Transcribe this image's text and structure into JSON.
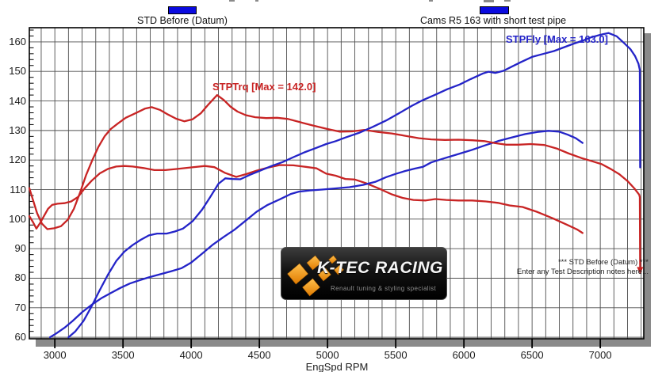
{
  "page": {
    "background": "#ffffff",
    "grid_color": "#4f4f4f",
    "border_color": "#000000",
    "shadow_color": "#8a8a8a"
  },
  "legend": {
    "items": [
      {
        "label": "STD Before (Datum)",
        "swatch_color": "#0a0adf"
      },
      {
        "label": "Cams R5 163 with short test pipe",
        "swatch_color": "#0a0adf"
      }
    ]
  },
  "annotations": {
    "trq_max_label": "STPTrq [Max = 142.0]",
    "fly_max_label": "STPFly [Max = 163.0]",
    "trq_color": "#c82424",
    "fly_color": "#2424c8",
    "note_line1": "*** STD Before (Datum) ***",
    "note_line2": "Enter any Test Description notes here...",
    "red_drop_arrow": {
      "rpm": 7292,
      "value": 83.5
    }
  },
  "logo": {
    "title": "K-TEC RACING",
    "tagline": "Renault tuning & styling specialist",
    "accent_color": "#f59a1d"
  },
  "chart_data": {
    "type": "line",
    "title": "",
    "xlabel": "EngSpd RPM",
    "ylabel": "",
    "x_range": [
      2813,
      7319
    ],
    "y_range": [
      59.5,
      164.8
    ],
    "x_ticks": [
      3000,
      3500,
      4000,
      4500,
      5000,
      5500,
      6000,
      6500,
      7000
    ],
    "y_ticks": [
      60,
      70,
      80,
      90,
      100,
      110,
      120,
      130,
      140,
      150,
      160
    ],
    "x_grid_step": 100,
    "y_grid_step": 10,
    "y_minor_tick_step": 2,
    "grid": true,
    "legend_position": "top",
    "series": [
      {
        "name": "STD Before (Datum) - STPTrq",
        "color": "#c82424",
        "points": [
          [
            2813,
            101
          ],
          [
            2840,
            99
          ],
          [
            2865,
            96.8
          ],
          [
            2890,
            98.5
          ],
          [
            2920,
            101
          ],
          [
            2950,
            103.5
          ],
          [
            2980,
            104.8
          ],
          [
            3020,
            105.2
          ],
          [
            3070,
            105.4
          ],
          [
            3120,
            106
          ],
          [
            3170,
            107.5
          ],
          [
            3220,
            110.5
          ],
          [
            3270,
            113
          ],
          [
            3330,
            115.5
          ],
          [
            3390,
            117
          ],
          [
            3450,
            117.8
          ],
          [
            3510,
            118
          ],
          [
            3570,
            117.8
          ],
          [
            3650,
            117.3
          ],
          [
            3730,
            116.6
          ],
          [
            3810,
            116.6
          ],
          [
            3900,
            117
          ],
          [
            4000,
            117.5
          ],
          [
            4100,
            118
          ],
          [
            4170,
            117.6
          ],
          [
            4250,
            115.6
          ],
          [
            4330,
            114.3
          ],
          [
            4400,
            115.2
          ],
          [
            4480,
            116.4
          ],
          [
            4560,
            117.4
          ],
          [
            4650,
            118.3
          ],
          [
            4750,
            118.2
          ],
          [
            4840,
            117.7
          ],
          [
            4920,
            117.2
          ],
          [
            4990,
            115.4
          ],
          [
            5060,
            114.7
          ],
          [
            5130,
            113.6
          ],
          [
            5200,
            113.4
          ],
          [
            5280,
            112.2
          ],
          [
            5380,
            110.3
          ],
          [
            5470,
            108.4
          ],
          [
            5550,
            107.2
          ],
          [
            5630,
            106.5
          ],
          [
            5720,
            106.3
          ],
          [
            5790,
            106.8
          ],
          [
            5870,
            106.5
          ],
          [
            5960,
            106.3
          ],
          [
            6060,
            106.3
          ],
          [
            6160,
            106
          ],
          [
            6250,
            105.5
          ],
          [
            6340,
            104.6
          ],
          [
            6430,
            104.1
          ],
          [
            6540,
            102.4
          ],
          [
            6650,
            100.3
          ],
          [
            6760,
            98
          ],
          [
            6830,
            96.5
          ],
          [
            6870,
            95.3
          ]
        ]
      },
      {
        "name": "STD Before (Datum) - STPFly",
        "color": "#2424c8",
        "points": [
          [
            2965,
            60
          ],
          [
            3010,
            61.3
          ],
          [
            3070,
            63.2
          ],
          [
            3130,
            65.5
          ],
          [
            3200,
            68.5
          ],
          [
            3270,
            71
          ],
          [
            3340,
            73.2
          ],
          [
            3410,
            75
          ],
          [
            3480,
            76.7
          ],
          [
            3550,
            78.2
          ],
          [
            3620,
            79.3
          ],
          [
            3690,
            80.3
          ],
          [
            3770,
            81.3
          ],
          [
            3850,
            82.3
          ],
          [
            3930,
            83.4
          ],
          [
            4000,
            85.3
          ],
          [
            4080,
            88.3
          ],
          [
            4160,
            91.4
          ],
          [
            4240,
            94
          ],
          [
            4320,
            96.5
          ],
          [
            4400,
            99.5
          ],
          [
            4480,
            102.5
          ],
          [
            4560,
            104.8
          ],
          [
            4650,
            106.7
          ],
          [
            4730,
            108.5
          ],
          [
            4790,
            109.3
          ],
          [
            4870,
            109.7
          ],
          [
            4960,
            110
          ],
          [
            5060,
            110.4
          ],
          [
            5160,
            110.8
          ],
          [
            5260,
            111.6
          ],
          [
            5350,
            112.6
          ],
          [
            5430,
            114.2
          ],
          [
            5500,
            115.3
          ],
          [
            5570,
            116.3
          ],
          [
            5640,
            117.1
          ],
          [
            5700,
            117.7
          ],
          [
            5760,
            119.2
          ],
          [
            5850,
            120.5
          ],
          [
            5950,
            121.9
          ],
          [
            6050,
            123.3
          ],
          [
            6150,
            124.9
          ],
          [
            6250,
            126.4
          ],
          [
            6350,
            127.6
          ],
          [
            6450,
            128.8
          ],
          [
            6540,
            129.5
          ],
          [
            6620,
            129.9
          ],
          [
            6700,
            129.6
          ],
          [
            6760,
            128.6
          ],
          [
            6820,
            127.4
          ],
          [
            6870,
            125.8
          ]
        ]
      },
      {
        "name": "Cams R5 163 with short test pipe - STPTrq",
        "color": "#c82424",
        "points": [
          [
            2813,
            110.5
          ],
          [
            2840,
            106.5
          ],
          [
            2870,
            102
          ],
          [
            2905,
            98.5
          ],
          [
            2945,
            96.6
          ],
          [
            2995,
            96.9
          ],
          [
            3045,
            97.6
          ],
          [
            3095,
            99.8
          ],
          [
            3140,
            103.5
          ],
          [
            3185,
            109
          ],
          [
            3230,
            115
          ],
          [
            3275,
            120
          ],
          [
            3320,
            124.5
          ],
          [
            3365,
            128
          ],
          [
            3410,
            130.5
          ],
          [
            3460,
            132.3
          ],
          [
            3520,
            134.3
          ],
          [
            3590,
            135.8
          ],
          [
            3660,
            137.4
          ],
          [
            3710,
            137.9
          ],
          [
            3770,
            137
          ],
          [
            3830,
            135.4
          ],
          [
            3890,
            134
          ],
          [
            3950,
            133.1
          ],
          [
            4010,
            133.8
          ],
          [
            4070,
            135.8
          ],
          [
            4130,
            139
          ],
          [
            4190,
            142
          ],
          [
            4240,
            140.3
          ],
          [
            4290,
            138
          ],
          [
            4340,
            136.4
          ],
          [
            4400,
            135.2
          ],
          [
            4470,
            134.5
          ],
          [
            4550,
            134.2
          ],
          [
            4630,
            134.3
          ],
          [
            4710,
            133.9
          ],
          [
            4800,
            132.8
          ],
          [
            4900,
            131.6
          ],
          [
            5000,
            130.5
          ],
          [
            5090,
            129.6
          ],
          [
            5180,
            129.7
          ],
          [
            5270,
            130.2
          ],
          [
            5370,
            129.5
          ],
          [
            5470,
            129
          ],
          [
            5570,
            128.2
          ],
          [
            5670,
            127.4
          ],
          [
            5760,
            127
          ],
          [
            5860,
            126.8
          ],
          [
            5960,
            126.9
          ],
          [
            6060,
            126.7
          ],
          [
            6150,
            126.4
          ],
          [
            6230,
            125.7
          ],
          [
            6310,
            125.2
          ],
          [
            6400,
            125.2
          ],
          [
            6490,
            125.4
          ],
          [
            6590,
            125.1
          ],
          [
            6680,
            123.9
          ],
          [
            6770,
            122.2
          ],
          [
            6860,
            120.7
          ],
          [
            6940,
            119.6
          ],
          [
            7010,
            118.6
          ],
          [
            7080,
            116.9
          ],
          [
            7140,
            115.2
          ],
          [
            7200,
            112.9
          ],
          [
            7250,
            110.4
          ],
          [
            7285,
            108.3
          ],
          [
            7290,
            107.5
          ],
          [
            7292,
            83.5
          ]
        ]
      },
      {
        "name": "Cams R5 163 with short test pipe - STPFly",
        "color": "#2424c8",
        "points": [
          [
            3100,
            60
          ],
          [
            3150,
            62
          ],
          [
            3210,
            65.5
          ],
          [
            3270,
            70.5
          ],
          [
            3330,
            76
          ],
          [
            3390,
            81.2
          ],
          [
            3450,
            85.8
          ],
          [
            3510,
            89
          ],
          [
            3570,
            91.2
          ],
          [
            3630,
            93
          ],
          [
            3690,
            94.5
          ],
          [
            3750,
            95.1
          ],
          [
            3820,
            95.1
          ],
          [
            3880,
            95.8
          ],
          [
            3940,
            96.8
          ],
          [
            4010,
            99.3
          ],
          [
            4080,
            103.2
          ],
          [
            4140,
            107.5
          ],
          [
            4200,
            112
          ],
          [
            4250,
            113.8
          ],
          [
            4300,
            113.6
          ],
          [
            4360,
            113.5
          ],
          [
            4430,
            115
          ],
          [
            4510,
            116.5
          ],
          [
            4590,
            118
          ],
          [
            4670,
            119.3
          ],
          [
            4750,
            121
          ],
          [
            4830,
            122.6
          ],
          [
            4910,
            124
          ],
          [
            4990,
            125.4
          ],
          [
            5060,
            126.4
          ],
          [
            5130,
            127.6
          ],
          [
            5230,
            129.2
          ],
          [
            5330,
            131.2
          ],
          [
            5430,
            133.4
          ],
          [
            5530,
            136
          ],
          [
            5620,
            138.4
          ],
          [
            5700,
            140.3
          ],
          [
            5790,
            142.1
          ],
          [
            5880,
            144
          ],
          [
            5970,
            145.6
          ],
          [
            6050,
            147.4
          ],
          [
            6140,
            149.3
          ],
          [
            6180,
            149.9
          ],
          [
            6230,
            149.5
          ],
          [
            6290,
            150.2
          ],
          [
            6350,
            151.6
          ],
          [
            6420,
            153.2
          ],
          [
            6500,
            154.9
          ],
          [
            6580,
            155.9
          ],
          [
            6660,
            156.9
          ],
          [
            6730,
            158.1
          ],
          [
            6800,
            159.3
          ],
          [
            6870,
            160.4
          ],
          [
            6930,
            161.5
          ],
          [
            7000,
            162.4
          ],
          [
            7060,
            163
          ],
          [
            7120,
            161.9
          ],
          [
            7170,
            159.8
          ],
          [
            7220,
            157.6
          ],
          [
            7255,
            155.2
          ],
          [
            7280,
            152.6
          ],
          [
            7290,
            150.5
          ],
          [
            7292,
            117.5
          ]
        ]
      }
    ]
  }
}
